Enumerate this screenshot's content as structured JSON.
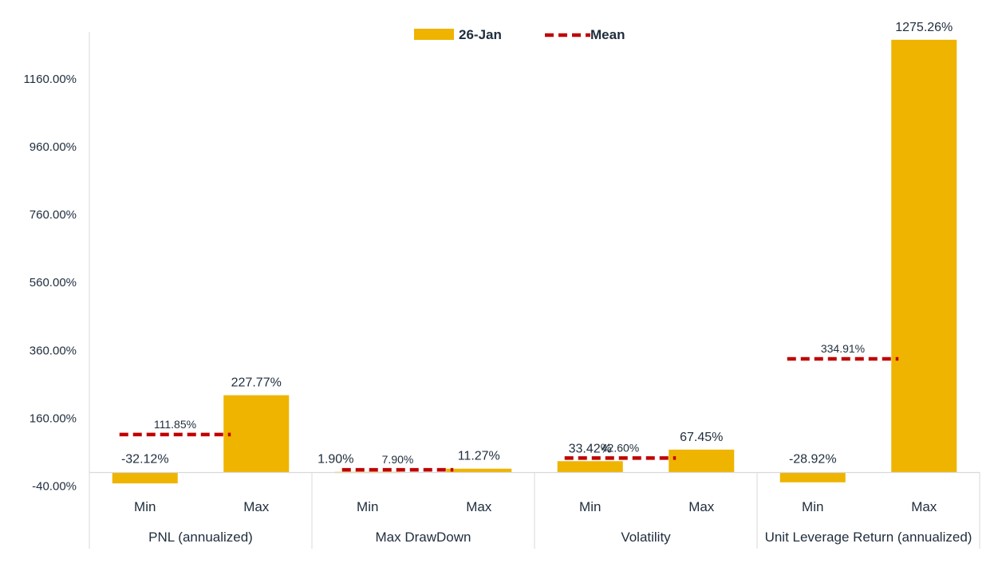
{
  "chart_data": {
    "type": "bar",
    "title": "",
    "xlabel": "",
    "ylabel": "",
    "ylim": [
      -40,
      1280
    ],
    "yticks": [
      "1160.00%",
      "960.00%",
      "760.00%",
      "560.00%",
      "360.00%",
      "160.00%",
      "-40.00%"
    ],
    "ytick_values": [
      1160,
      960,
      760,
      560,
      360,
      160,
      -40
    ],
    "grid": false,
    "legend_position": "top-center",
    "bar_color": "#EEB400",
    "mean_color": "#C00000",
    "groups": [
      {
        "label": "PNL (annualized)",
        "categories": [
          "Min",
          "Max"
        ],
        "values": [
          -32.12,
          227.77
        ],
        "value_labels": [
          "-32.12%",
          "227.77%"
        ],
        "mean": 111.85,
        "mean_label": "111.85%"
      },
      {
        "label": "Max DrawDown",
        "categories": [
          "Min",
          "Max"
        ],
        "values": [
          1.9,
          11.27
        ],
        "value_labels": [
          "1.90%",
          "11.27%"
        ],
        "mean": 7.9,
        "mean_label": "7.90%"
      },
      {
        "label": "Volatility",
        "categories": [
          "Min",
          "Max"
        ],
        "values": [
          33.42,
          67.45
        ],
        "value_labels": [
          "33.42%",
          "67.45%"
        ],
        "mean": 42.6,
        "mean_label": "42.60%"
      },
      {
        "label": "Unit Leverage Return (annualized)",
        "categories": [
          "Min",
          "Max"
        ],
        "values": [
          -28.92,
          1275.26
        ],
        "value_labels": [
          "-28.92%",
          "1275.26%"
        ],
        "mean": 334.91,
        "mean_label": "334.91%"
      }
    ],
    "legend": [
      {
        "name": "26-Jan",
        "kind": "bar"
      },
      {
        "name": "Mean",
        "kind": "dashed-line"
      }
    ]
  }
}
